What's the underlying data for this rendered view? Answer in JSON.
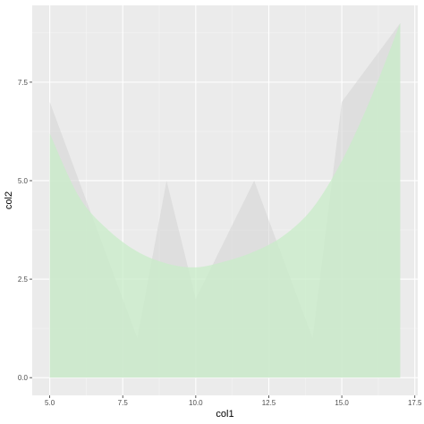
{
  "chart_data": {
    "type": "area",
    "xlabel": "col1",
    "ylabel": "col2",
    "xlim": [
      4.4,
      17.6
    ],
    "ylim": [
      -0.45,
      9.45
    ],
    "x_ticks": [
      5.0,
      7.5,
      10.0,
      12.5,
      15.0,
      17.5
    ],
    "x_tick_labels": [
      "5.0",
      "7.5",
      "10.0",
      "12.5",
      "15.0",
      "17.5"
    ],
    "y_ticks": [
      0.0,
      2.5,
      5.0,
      7.5
    ],
    "y_tick_labels": [
      "0.0",
      "2.5",
      "5.0",
      "7.5"
    ],
    "grid": true,
    "legend": "none",
    "series": [
      {
        "kind": "area",
        "x": [
          5,
          8,
          9,
          10,
          12,
          14,
          15,
          17
        ],
        "y": [
          7,
          1,
          5,
          2,
          5,
          1,
          7,
          9
        ],
        "color": "#d3d3d3"
      },
      {
        "kind": "smooth-area",
        "x": [
          5,
          6,
          7,
          8,
          9,
          10,
          11,
          12,
          13,
          14,
          15,
          16,
          17
        ],
        "y": [
          6.2,
          4.6,
          3.75,
          3.2,
          2.9,
          2.8,
          2.95,
          3.2,
          3.6,
          4.3,
          5.5,
          7.1,
          9.0
        ],
        "color": "#c8ecc8"
      }
    ]
  }
}
